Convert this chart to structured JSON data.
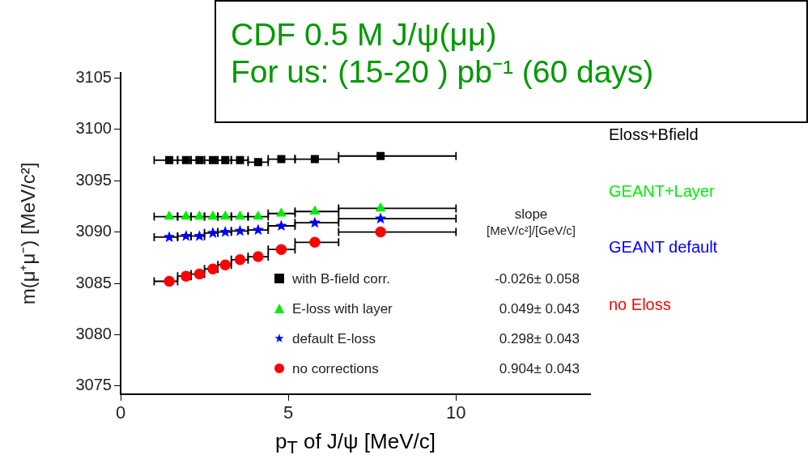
{
  "chart_data": {
    "type": "scatter",
    "xlabel": "p$_{T}$ of J/ψ [MeV/c]",
    "ylabel": "m(μ⁺μ⁻) [MeV/c²]",
    "xlim": [
      0,
      14
    ],
    "xticks": [
      0,
      5,
      10
    ],
    "ylim": [
      3074.2,
      3105.5
    ],
    "yticks": [
      3075,
      3080,
      3085,
      3090,
      3095,
      3100,
      3105
    ],
    "grid": false,
    "legend": "bottom right",
    "series": [
      {
        "name": "with B-field corr.",
        "color": "#000000",
        "marker": "square",
        "x": [
          1.45,
          1.95,
          2.35,
          2.75,
          3.12,
          3.56,
          4.1,
          4.79,
          5.79,
          7.75
        ],
        "values": [
          3097.0,
          3097.0,
          3097.0,
          3097.0,
          3097.0,
          3097.0,
          3096.8,
          3097.1,
          3097.1,
          3097.4
        ],
        "xerrors": [
          [
            1.0,
            1.7
          ],
          [
            1.7,
            2.1
          ],
          [
            2.1,
            2.5
          ],
          [
            2.5,
            2.9
          ],
          [
            2.9,
            3.3
          ],
          [
            3.3,
            3.8
          ],
          [
            3.8,
            4.4
          ],
          [
            4.4,
            5.2
          ],
          [
            5.2,
            6.5
          ],
          [
            6.5,
            10.0
          ]
        ]
      },
      {
        "name": "E-loss with layer",
        "color": "#00ee00",
        "marker": "triangle",
        "x": [
          1.45,
          1.95,
          2.35,
          2.75,
          3.12,
          3.56,
          4.1,
          4.79,
          5.79,
          7.75
        ],
        "values": [
          3091.5,
          3091.5,
          3091.5,
          3091.5,
          3091.5,
          3091.5,
          3091.5,
          3091.8,
          3092.0,
          3092.3
        ],
        "xerrors": [
          [
            1.0,
            1.7
          ],
          [
            1.7,
            2.1
          ],
          [
            2.1,
            2.5
          ],
          [
            2.5,
            2.9
          ],
          [
            2.9,
            3.3
          ],
          [
            3.3,
            3.8
          ],
          [
            3.8,
            4.4
          ],
          [
            4.4,
            5.2
          ],
          [
            5.2,
            6.5
          ],
          [
            6.5,
            10.0
          ]
        ]
      },
      {
        "name": "default E-loss",
        "color": "#0000ff",
        "marker": "star",
        "x": [
          1.45,
          1.95,
          2.35,
          2.75,
          3.12,
          3.56,
          4.1,
          4.79,
          5.79,
          7.75
        ],
        "values": [
          3089.5,
          3089.6,
          3089.6,
          3089.9,
          3090.0,
          3090.1,
          3090.2,
          3090.6,
          3090.9,
          3091.3
        ],
        "xerrors": [
          [
            1.0,
            1.7
          ],
          [
            1.7,
            2.1
          ],
          [
            2.1,
            2.5
          ],
          [
            2.5,
            2.9
          ],
          [
            2.9,
            3.3
          ],
          [
            3.3,
            3.8
          ],
          [
            3.8,
            4.4
          ],
          [
            4.4,
            5.2
          ],
          [
            5.2,
            6.5
          ],
          [
            6.5,
            10.0
          ]
        ]
      },
      {
        "name": "no corrections",
        "color": "#ff0000",
        "marker": "circle",
        "x": [
          1.45,
          1.95,
          2.35,
          2.75,
          3.12,
          3.56,
          4.1,
          4.79,
          5.79,
          7.75
        ],
        "values": [
          3085.2,
          3085.7,
          3085.9,
          3086.4,
          3086.8,
          3087.3,
          3087.6,
          3088.3,
          3089.0,
          3090.0
        ],
        "xerrors": [
          [
            1.0,
            1.7
          ],
          [
            1.7,
            2.1
          ],
          [
            2.1,
            2.5
          ],
          [
            2.5,
            2.9
          ],
          [
            2.9,
            3.3
          ],
          [
            3.3,
            3.8
          ],
          [
            3.8,
            4.4
          ],
          [
            4.4,
            5.2
          ],
          [
            5.2,
            6.5
          ],
          [
            6.5,
            10.0
          ]
        ]
      }
    ],
    "annotations": [
      "CDF 0.5 M J/ψ(μμ)",
      "For us: (15-20 ) pb⁻¹ (60 days)",
      "slope",
      "[MeV/c²]/[GeV/c]",
      "-0.026± 0.058",
      "0.049± 0.043",
      "0.298± 0.043",
      "0.904± 0.043",
      "Eloss+Bfield",
      "GEANT+Layer",
      "GEANT default",
      "no Eloss"
    ]
  }
}
